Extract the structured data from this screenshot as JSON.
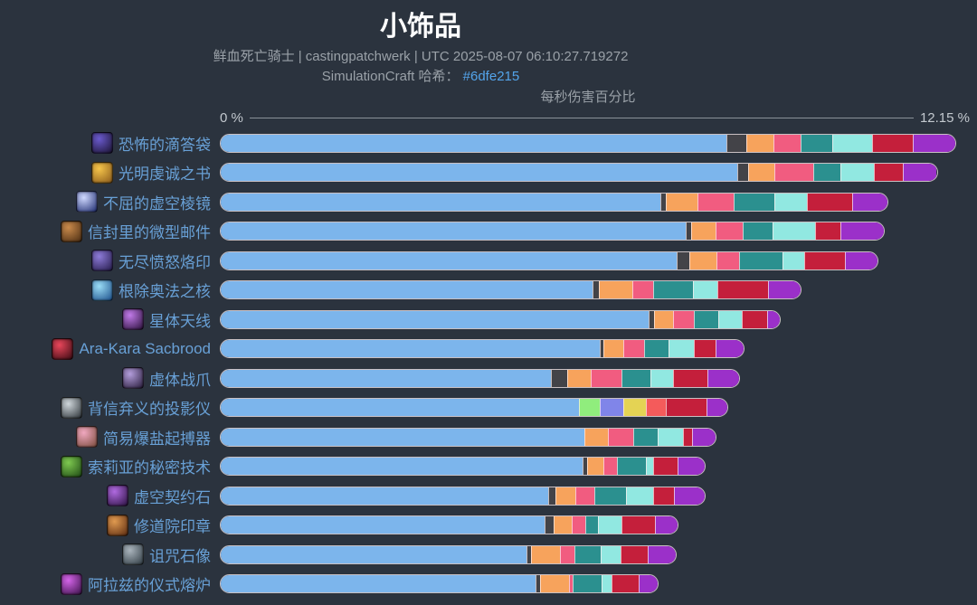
{
  "header": {
    "title": "小饰品",
    "subtitle": "鲜血死亡骑士 | castingpatchwerk | UTC 2025-08-07 06:10:27.719272",
    "hash_label": "SimulationCraft 哈希：",
    "hash_value": "#6dfe215"
  },
  "axis": {
    "title": "每秒伤害百分比",
    "min_label": "0 %",
    "max_label": "12.15 %"
  },
  "colors": {
    "blue": "#7cb5ec",
    "grey": "#434348",
    "green": "#90ed7d",
    "orange": "#f7a35c",
    "periwinkle": "#8085e9",
    "pink": "#f15c80",
    "yellow": "#e4d354",
    "teal": "#2b908f",
    "salmon": "#f45b5b",
    "cyan": "#91e8e1",
    "red": "#c41f3b",
    "purple": "#9b30c9",
    "background": "#2b333e",
    "label_blue": "#68a0d6",
    "link_blue": "#53a4ea"
  },
  "chart_data": {
    "type": "bar",
    "stacked": true,
    "title": "小饰品",
    "xlabel": "每秒伤害百分比",
    "xlim": [
      0,
      12.15
    ],
    "unit": "%",
    "legend": "none",
    "categories": [
      "恐怖的滴答袋",
      "光明虔诚之书",
      "不屈的虚空棱镜",
      "信封里的微型邮件",
      "无尽愤怒烙印",
      "根除奥法之核",
      "星体天线",
      "Ara-Kara Sacbrood",
      "虚体战爪",
      "背信弃义的投影仪",
      "简易爆盐起搏器",
      "索莉亚的秘密技术",
      "虚空契约石",
      "修道院印章",
      "诅咒石像",
      "阿拉兹的仪式熔炉"
    ],
    "totals": [
      12.15,
      11.85,
      11.03,
      10.97,
      10.87,
      9.6,
      9.25,
      8.66,
      8.58,
      8.39,
      8.19,
      8.02,
      8.02,
      7.57,
      7.54,
      7.24
    ],
    "rows": [
      {
        "label": "恐怖的滴答袋",
        "icon": "horrific-ticking-sack-icon",
        "icon_colors": [
          "#6a5acd",
          "#1a1230"
        ],
        "total_pct": 12.15,
        "segments": [
          {
            "c": "blue",
            "v": 8.36
          },
          {
            "c": "grey",
            "v": 0.33
          },
          {
            "c": "orange",
            "v": 0.45
          },
          {
            "c": "pink",
            "v": 0.45
          },
          {
            "c": "teal",
            "v": 0.52
          },
          {
            "c": "cyan",
            "v": 0.67
          },
          {
            "c": "red",
            "v": 0.67
          },
          {
            "c": "purple",
            "v": 0.7
          }
        ]
      },
      {
        "label": "光明虔诚之书",
        "icon": "tome-of-light-devotion-icon",
        "icon_colors": [
          "#f5c44a",
          "#8a5a1a"
        ],
        "total_pct": 11.85,
        "segments": [
          {
            "c": "blue",
            "v": 8.54
          },
          {
            "c": "grey",
            "v": 0.19
          },
          {
            "c": "orange",
            "v": 0.43
          },
          {
            "c": "pink",
            "v": 0.64
          },
          {
            "c": "teal",
            "v": 0.45
          },
          {
            "c": "cyan",
            "v": 0.55
          },
          {
            "c": "red",
            "v": 0.49
          },
          {
            "c": "purple",
            "v": 0.55
          }
        ]
      },
      {
        "label": "不屈的虚空棱镜",
        "icon": "unyielding-void-prism-icon",
        "icon_colors": [
          "#cfd8ff",
          "#1c2a6e"
        ],
        "total_pct": 11.03,
        "segments": [
          {
            "c": "blue",
            "v": 7.27
          },
          {
            "c": "grey",
            "v": 0.1
          },
          {
            "c": "orange",
            "v": 0.52
          },
          {
            "c": "pink",
            "v": 0.6
          },
          {
            "c": "teal",
            "v": 0.67
          },
          {
            "c": "cyan",
            "v": 0.54
          },
          {
            "c": "red",
            "v": 0.75
          },
          {
            "c": "purple",
            "v": 0.58
          }
        ]
      },
      {
        "label": "信封里的微型邮件",
        "icon": "miniature-mail-envelope-icon",
        "icon_colors": [
          "#c98a4b",
          "#4a2c12"
        ],
        "total_pct": 10.97,
        "segments": [
          {
            "c": "blue",
            "v": 7.69
          },
          {
            "c": "grey",
            "v": 0.1
          },
          {
            "c": "orange",
            "v": 0.4
          },
          {
            "c": "pink",
            "v": 0.45
          },
          {
            "c": "teal",
            "v": 0.49
          },
          {
            "c": "cyan",
            "v": 0.7
          },
          {
            "c": "red",
            "v": 0.42
          },
          {
            "c": "purple",
            "v": 0.72
          }
        ]
      },
      {
        "label": "无尽愤怒烙印",
        "icon": "brand-of-ceaseless-ire-icon",
        "icon_colors": [
          "#8d7bd8",
          "#241a4a"
        ],
        "total_pct": 10.87,
        "segments": [
          {
            "c": "blue",
            "v": 7.54
          },
          {
            "c": "grey",
            "v": 0.21
          },
          {
            "c": "orange",
            "v": 0.46
          },
          {
            "c": "pink",
            "v": 0.37
          },
          {
            "c": "teal",
            "v": 0.72
          },
          {
            "c": "cyan",
            "v": 0.36
          },
          {
            "c": "red",
            "v": 0.67
          },
          {
            "c": "purple",
            "v": 0.54
          }
        ]
      },
      {
        "label": "根除奥法之核",
        "icon": "arcanocore-icon",
        "icon_colors": [
          "#9adcf5",
          "#1a4e8a"
        ],
        "total_pct": 9.6,
        "segments": [
          {
            "c": "blue",
            "v": 6.16
          },
          {
            "c": "grey",
            "v": 0.1
          },
          {
            "c": "orange",
            "v": 0.55
          },
          {
            "c": "pink",
            "v": 0.34
          },
          {
            "c": "teal",
            "v": 0.67
          },
          {
            "c": "cyan",
            "v": 0.4
          },
          {
            "c": "red",
            "v": 0.84
          },
          {
            "c": "purple",
            "v": 0.54
          }
        ]
      },
      {
        "label": "星体天线",
        "icon": "astral-antenna-icon",
        "icon_colors": [
          "#c07ae8",
          "#2a0f3a"
        ],
        "total_pct": 9.25,
        "segments": [
          {
            "c": "blue",
            "v": 7.08
          },
          {
            "c": "grey",
            "v": 0.1
          },
          {
            "c": "orange",
            "v": 0.31
          },
          {
            "c": "pink",
            "v": 0.34
          },
          {
            "c": "teal",
            "v": 0.4
          },
          {
            "c": "cyan",
            "v": 0.4
          },
          {
            "c": "red",
            "v": 0.42
          },
          {
            "c": "purple",
            "v": 0.2
          }
        ]
      },
      {
        "label": "Ara-Kara Sacbrood",
        "icon": "ara-kara-sacbrood-icon",
        "icon_colors": [
          "#e8465a",
          "#3a0a12"
        ],
        "total_pct": 8.66,
        "segments": [
          {
            "c": "blue",
            "v": 6.28
          },
          {
            "c": "grey",
            "v": 0.06
          },
          {
            "c": "orange",
            "v": 0.33
          },
          {
            "c": "pink",
            "v": 0.34
          },
          {
            "c": "teal",
            "v": 0.4
          },
          {
            "c": "cyan",
            "v": 0.42
          },
          {
            "c": "red",
            "v": 0.36
          },
          {
            "c": "purple",
            "v": 0.47
          }
        ]
      },
      {
        "label": "虚体战爪",
        "icon": "phantasmal-warclaw-icon",
        "icon_colors": [
          "#b39ddb",
          "#261a38"
        ],
        "total_pct": 8.58,
        "segments": [
          {
            "c": "blue",
            "v": 5.46
          },
          {
            "c": "grey",
            "v": 0.27
          },
          {
            "c": "orange",
            "v": 0.4
          },
          {
            "c": "pink",
            "v": 0.51
          },
          {
            "c": "teal",
            "v": 0.48
          },
          {
            "c": "cyan",
            "v": 0.37
          },
          {
            "c": "red",
            "v": 0.57
          },
          {
            "c": "purple",
            "v": 0.52
          }
        ]
      },
      {
        "label": "背信弃义的投影仪",
        "icon": "perfidious-projector-icon",
        "icon_colors": [
          "#cfd6da",
          "#2a3136"
        ],
        "total_pct": 8.39,
        "segments": [
          {
            "c": "blue",
            "v": 5.93
          },
          {
            "c": "green",
            "v": 0.34
          },
          {
            "c": "periwinkle",
            "v": 0.4
          },
          {
            "c": "yellow",
            "v": 0.37
          },
          {
            "c": "salmon",
            "v": 0.33
          },
          {
            "c": "red",
            "v": 0.67
          },
          {
            "c": "purple",
            "v": 0.35
          }
        ]
      },
      {
        "label": "简易爆盐起搏器",
        "icon": "improvised-seaforium-pacemaker-icon",
        "icon_colors": [
          "#f0a8c0",
          "#7a4a3a"
        ],
        "total_pct": 8.19,
        "segments": [
          {
            "c": "blue",
            "v": 6.02
          },
          {
            "c": "orange",
            "v": 0.39
          },
          {
            "c": "pink",
            "v": 0.42
          },
          {
            "c": "teal",
            "v": 0.4
          },
          {
            "c": "cyan",
            "v": 0.42
          },
          {
            "c": "red",
            "v": 0.16
          },
          {
            "c": "purple",
            "v": 0.38
          }
        ]
      },
      {
        "label": "索莉亚的秘密技术",
        "icon": "soleahs-secret-technique-icon",
        "icon_colors": [
          "#7ec850",
          "#1e4a14"
        ],
        "total_pct": 8.02,
        "segments": [
          {
            "c": "blue",
            "v": 6.0
          },
          {
            "c": "grey",
            "v": 0.07
          },
          {
            "c": "orange",
            "v": 0.27
          },
          {
            "c": "pink",
            "v": 0.22
          },
          {
            "c": "teal",
            "v": 0.48
          },
          {
            "c": "cyan",
            "v": 0.12
          },
          {
            "c": "red",
            "v": 0.4
          },
          {
            "c": "purple",
            "v": 0.46
          }
        ]
      },
      {
        "label": "虚空契约石",
        "icon": "void-pact-stone-icon",
        "icon_colors": [
          "#b06ae0",
          "#2a1040"
        ],
        "total_pct": 8.02,
        "segments": [
          {
            "c": "blue",
            "v": 5.43
          },
          {
            "c": "grey",
            "v": 0.12
          },
          {
            "c": "orange",
            "v": 0.33
          },
          {
            "c": "pink",
            "v": 0.31
          },
          {
            "c": "teal",
            "v": 0.52
          },
          {
            "c": "cyan",
            "v": 0.45
          },
          {
            "c": "red",
            "v": 0.34
          },
          {
            "c": "purple",
            "v": 0.52
          }
        ]
      },
      {
        "label": "修道院印章",
        "icon": "priory-seal-icon",
        "icon_colors": [
          "#e09a50",
          "#5a2a10"
        ],
        "total_pct": 7.57,
        "segments": [
          {
            "c": "blue",
            "v": 5.36
          },
          {
            "c": "grey",
            "v": 0.15
          },
          {
            "c": "orange",
            "v": 0.31
          },
          {
            "c": "pink",
            "v": 0.22
          },
          {
            "c": "teal",
            "v": 0.21
          },
          {
            "c": "cyan",
            "v": 0.39
          },
          {
            "c": "red",
            "v": 0.55
          },
          {
            "c": "purple",
            "v": 0.38
          }
        ]
      },
      {
        "label": "诅咒石像",
        "icon": "cursed-stone-idol-icon",
        "icon_colors": [
          "#aab4bc",
          "#2e3a42"
        ],
        "total_pct": 7.54,
        "segments": [
          {
            "c": "blue",
            "v": 5.07
          },
          {
            "c": "grey",
            "v": 0.07
          },
          {
            "c": "orange",
            "v": 0.48
          },
          {
            "c": "pink",
            "v": 0.24
          },
          {
            "c": "teal",
            "v": 0.43
          },
          {
            "c": "cyan",
            "v": 0.34
          },
          {
            "c": "red",
            "v": 0.45
          },
          {
            "c": "purple",
            "v": 0.46
          }
        ]
      },
      {
        "label": "阿拉兹的仪式熔炉",
        "icon": "araz-ritual-forge-icon",
        "icon_colors": [
          "#d464e8",
          "#3a1048"
        ],
        "total_pct": 7.24,
        "segments": [
          {
            "c": "blue",
            "v": 5.22
          },
          {
            "c": "grey",
            "v": 0.07
          },
          {
            "c": "orange",
            "v": 0.48
          },
          {
            "c": "pink",
            "v": 0.06
          },
          {
            "c": "teal",
            "v": 0.48
          },
          {
            "c": "cyan",
            "v": 0.16
          },
          {
            "c": "red",
            "v": 0.46
          },
          {
            "c": "purple",
            "v": 0.31
          }
        ]
      }
    ]
  }
}
